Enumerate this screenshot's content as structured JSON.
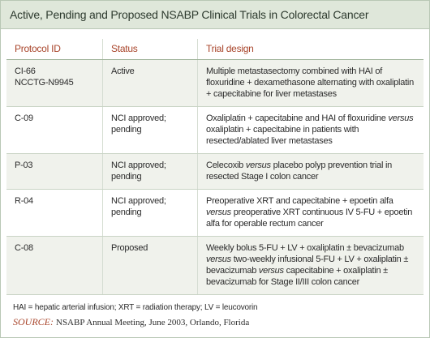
{
  "header": {
    "title": "Active, Pending and Proposed NSABP Clinical Trials in Colorectal Cancer"
  },
  "table": {
    "columns": [
      "Protocol ID",
      "Status",
      "Trial design"
    ],
    "rows": [
      {
        "protocol_id": [
          "CI-66",
          "NCCTG-N9945"
        ],
        "status": "Active",
        "trial_design": [
          {
            "text": "Multiple metastasectomy combined with HAI of floxuridine + dexamethasone alternating with oxaliplatin + capecitabine for liver metastases"
          }
        ]
      },
      {
        "protocol_id": [
          "C-09"
        ],
        "status": "NCI approved; pending",
        "trial_design": [
          {
            "text": "Oxaliplatin + capecitabine and HAI of floxuridine "
          },
          {
            "text": "versus",
            "italic": true
          },
          {
            "text": " oxaliplatin + capecitabine in patients with resected/ablated liver metastases"
          }
        ]
      },
      {
        "protocol_id": [
          "P-03"
        ],
        "status": "NCI approved; pending",
        "trial_design": [
          {
            "text": "Celecoxib "
          },
          {
            "text": "versus",
            "italic": true
          },
          {
            "text": " placebo polyp prevention trial in resected Stage I colon cancer"
          }
        ]
      },
      {
        "protocol_id": [
          "R-04"
        ],
        "status": "NCI approved; pending",
        "trial_design": [
          {
            "text": "Preoperative XRT and capecitabine + epoetin alfa "
          },
          {
            "text": "versus",
            "italic": true
          },
          {
            "text": " preoperative XRT continuous IV 5-FU + epoetin alfa for operable rectum cancer"
          }
        ]
      },
      {
        "protocol_id": [
          "C-08"
        ],
        "status": "Proposed",
        "trial_design": [
          {
            "text": "Weekly bolus 5-FU + LV + oxaliplatin ± bevacizumab "
          },
          {
            "text": "versus",
            "italic": true
          },
          {
            "text": " two-weekly infusional 5-FU + LV + oxaliplatin ± bevacizumab "
          },
          {
            "text": "versus",
            "italic": true
          },
          {
            "text": " capecitabine + oxaliplatin ± bevacizumab for Stage II/III colon cancer"
          }
        ]
      }
    ]
  },
  "footnote": "HAI = hepatic arterial infusion; XRT = radiation therapy; LV = leucovorin",
  "source": {
    "label": "SOURCE:",
    "text": "NSABP Annual Meeting, June 2003, Orlando, Florida"
  }
}
